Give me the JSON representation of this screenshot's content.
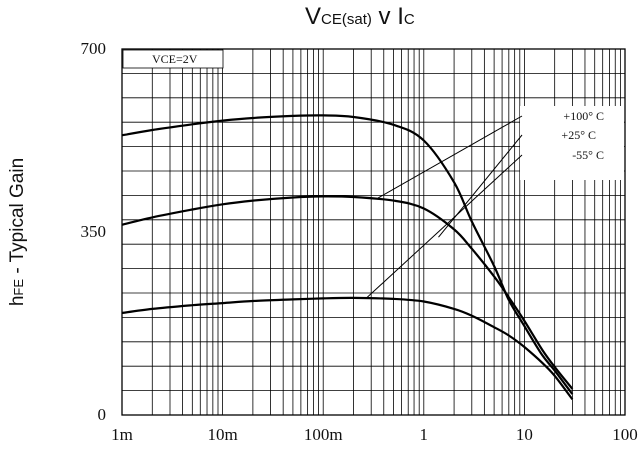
{
  "chart_data": {
    "type": "line",
    "title_main": "V",
    "title_sub1": "CE(sat)",
    "title_mid": " v I",
    "title_sub2": "C",
    "ylabel_main": "h",
    "ylabel_sub": "FE",
    "ylabel_rest": " - Typical Gain",
    "xlabel": "",
    "x_scale": "log",
    "xlim": [
      0.001,
      100
    ],
    "ylim": [
      0,
      700
    ],
    "x_ticks": [
      0.001,
      0.01,
      0.1,
      1,
      10,
      100
    ],
    "x_tick_labels": [
      "1m",
      "10m",
      "100m",
      "1",
      "10",
      "100"
    ],
    "y_ticks": [
      0,
      350,
      700
    ],
    "y_tick_labels": [
      "0",
      "350",
      "700"
    ],
    "y_minor_gridlines": 15,
    "grid": true,
    "condition_label": "VCE=2V",
    "legend_position": "top-right",
    "series": [
      {
        "name": "+100° C",
        "x": [
          0.001,
          0.002,
          0.005,
          0.01,
          0.02,
          0.05,
          0.1,
          0.2,
          0.5,
          1,
          2,
          3,
          5,
          7,
          10,
          15,
          20,
          30
        ],
        "y": [
          535,
          545,
          556,
          563,
          568,
          572,
          573,
          570,
          555,
          525,
          445,
          370,
          285,
          220,
          170,
          115,
          85,
          40
        ]
      },
      {
        "name": "+25° C",
        "x": [
          0.001,
          0.002,
          0.005,
          0.01,
          0.02,
          0.05,
          0.1,
          0.2,
          0.5,
          1,
          2,
          3,
          5,
          7,
          10,
          15,
          20,
          30
        ],
        "y": [
          364,
          378,
          393,
          403,
          410,
          416,
          418,
          417,
          410,
          395,
          355,
          318,
          265,
          225,
          180,
          125,
          92,
          50
        ]
      },
      {
        "name": "-55° C",
        "x": [
          0.001,
          0.002,
          0.005,
          0.01,
          0.02,
          0.05,
          0.1,
          0.2,
          0.5,
          1,
          2,
          3,
          5,
          7,
          10,
          15,
          20,
          30
        ],
        "y": [
          195,
          203,
          210,
          214,
          218,
          221,
          223,
          224,
          222,
          217,
          203,
          190,
          168,
          152,
          130,
          100,
          75,
          30
        ]
      }
    ]
  }
}
